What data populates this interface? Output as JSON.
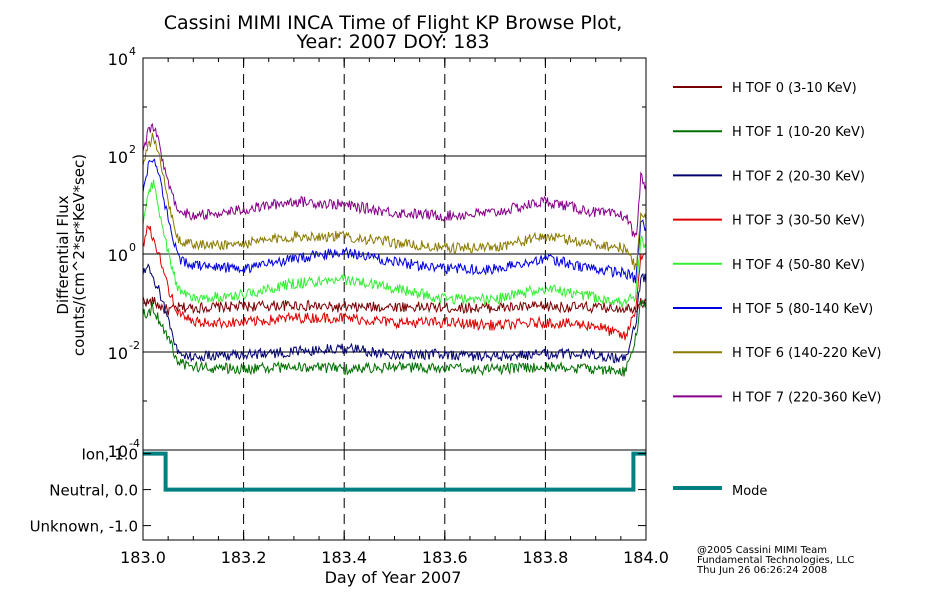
{
  "title_line1": "Cassini MIMI INCA Time of Flight KP Browse Plot,",
  "title_line2": "Year: 2007 DOY: 183",
  "copyright": [
    "@2005 Cassini MIMI Team",
    "Fundamental Technologies, LLC",
    "Thu Jun 26 06:26:24 2008"
  ],
  "chart_data": [
    {
      "type": "line",
      "yscale": "log",
      "ylabel_line1": "Differential Flux",
      "ylabel_line2": "counts/(cm^2*sr*KeV*sec)",
      "xlabel": "Day of Year 2007",
      "xlim": [
        183.0,
        184.0
      ],
      "ylim": [
        0.0001,
        10000
      ],
      "y_ticks": [
        {
          "value": 0.0001,
          "base": "10",
          "exp": "-4"
        },
        {
          "value": 0.01,
          "base": "10",
          "exp": "-2"
        },
        {
          "value": 1,
          "base": "10",
          "exp": "0"
        },
        {
          "value": 100,
          "base": "10",
          "exp": "2"
        },
        {
          "value": 10000,
          "base": "10",
          "exp": "4"
        }
      ],
      "x_ticks": [
        "183.0",
        "183.2",
        "183.4",
        "183.6",
        "183.8",
        "184.0"
      ],
      "x_tick_values": [
        183.0,
        183.2,
        183.4,
        183.6,
        183.8,
        184.0
      ],
      "grid": {
        "vertical_dashed": true,
        "horizontal_solid_at": [
          0.01,
          1,
          100
        ]
      },
      "legend_position": "right",
      "series": [
        {
          "name": "H TOF 0 (3-10 KeV)",
          "color": "#7a0000",
          "x": [
            183.0,
            183.01,
            183.02,
            183.03,
            183.05,
            183.07,
            183.1,
            183.2,
            183.3,
            183.4,
            183.5,
            183.6,
            183.7,
            183.8,
            183.9,
            183.96,
            183.98,
            183.99,
            184.0
          ],
          "y": [
            0.12,
            0.1,
            0.11,
            0.09,
            0.07,
            0.08,
            0.08,
            0.085,
            0.09,
            0.08,
            0.085,
            0.08,
            0.08,
            0.085,
            0.08,
            0.08,
            0.08,
            0.11,
            0.09
          ]
        },
        {
          "name": "H TOF 1 (10-20 KeV)",
          "color": "#007000",
          "x": [
            183.0,
            183.01,
            183.02,
            183.03,
            183.05,
            183.07,
            183.1,
            183.2,
            183.3,
            183.4,
            183.5,
            183.6,
            183.7,
            183.8,
            183.9,
            183.96,
            183.98,
            183.99,
            184.0
          ],
          "y": [
            0.07,
            0.06,
            0.08,
            0.05,
            0.02,
            0.006,
            0.005,
            0.0045,
            0.005,
            0.0045,
            0.005,
            0.0045,
            0.0045,
            0.005,
            0.0045,
            0.004,
            0.02,
            0.12,
            0.1
          ]
        },
        {
          "name": "H TOF 2 (20-30 KeV)",
          "color": "#000070",
          "x": [
            183.0,
            183.01,
            183.02,
            183.03,
            183.05,
            183.07,
            183.1,
            183.2,
            183.3,
            183.4,
            183.5,
            183.6,
            183.7,
            183.8,
            183.9,
            183.96,
            183.98,
            183.99,
            184.0
          ],
          "y": [
            0.4,
            0.5,
            0.3,
            0.2,
            0.05,
            0.009,
            0.008,
            0.009,
            0.01,
            0.012,
            0.009,
            0.009,
            0.008,
            0.009,
            0.009,
            0.007,
            0.04,
            0.4,
            0.3
          ]
        },
        {
          "name": "H TOF 3 (30-50 KeV)",
          "color": "#dd0000",
          "x": [
            183.0,
            183.01,
            183.02,
            183.03,
            183.05,
            183.07,
            183.1,
            183.2,
            183.3,
            183.4,
            183.5,
            183.6,
            183.7,
            183.8,
            183.9,
            183.96,
            183.98,
            183.99,
            184.0
          ],
          "y": [
            1.5,
            4,
            2,
            1.2,
            0.2,
            0.06,
            0.04,
            0.04,
            0.05,
            0.05,
            0.04,
            0.04,
            0.035,
            0.04,
            0.035,
            0.02,
            0.08,
            1.0,
            0.8
          ]
        },
        {
          "name": "H TOF 4 (50-80 KeV)",
          "color": "#33ee33",
          "x": [
            183.0,
            183.01,
            183.02,
            183.03,
            183.05,
            183.07,
            183.1,
            183.2,
            183.3,
            183.4,
            183.5,
            183.6,
            183.7,
            183.8,
            183.9,
            183.96,
            183.98,
            183.99,
            184.0
          ],
          "y": [
            5,
            15,
            30,
            10,
            1.0,
            0.2,
            0.12,
            0.15,
            0.25,
            0.3,
            0.2,
            0.12,
            0.12,
            0.2,
            0.13,
            0.1,
            0.15,
            2,
            1.5
          ]
        },
        {
          "name": "H TOF 5 (80-140 KeV)",
          "color": "#0000dd",
          "x": [
            183.0,
            183.01,
            183.02,
            183.03,
            183.05,
            183.07,
            183.1,
            183.2,
            183.3,
            183.4,
            183.5,
            183.6,
            183.7,
            183.8,
            183.9,
            183.96,
            183.98,
            183.99,
            184.0
          ],
          "y": [
            20,
            60,
            100,
            50,
            5,
            0.8,
            0.6,
            0.5,
            0.8,
            1.1,
            0.7,
            0.5,
            0.5,
            0.8,
            0.5,
            0.4,
            0.3,
            5,
            3
          ]
        },
        {
          "name": "H TOF 6 (140-220 KeV)",
          "color": "#8a7a00",
          "x": [
            183.0,
            183.01,
            183.02,
            183.03,
            183.05,
            183.07,
            183.1,
            183.2,
            183.3,
            183.4,
            183.5,
            183.6,
            183.7,
            183.8,
            183.9,
            183.96,
            183.98,
            183.99,
            184.0
          ],
          "y": [
            60,
            150,
            250,
            120,
            12,
            2,
            1.5,
            1.6,
            2.3,
            2.3,
            1.7,
            1.3,
            1.4,
            2.3,
            1.6,
            1.3,
            0.5,
            8,
            5
          ]
        },
        {
          "name": "H TOF 7 (220-360 KeV)",
          "color": "#880088",
          "x": [
            183.0,
            183.01,
            183.02,
            183.03,
            183.05,
            183.07,
            183.1,
            183.2,
            183.3,
            183.4,
            183.5,
            183.6,
            183.7,
            183.8,
            183.9,
            183.96,
            183.98,
            183.99,
            184.0
          ],
          "y": [
            100,
            300,
            400,
            200,
            30,
            8,
            6,
            8,
            12,
            10,
            7,
            6,
            7,
            12,
            7,
            6,
            2,
            40,
            20
          ]
        }
      ]
    },
    {
      "type": "line",
      "xlim": [
        183.0,
        184.0
      ],
      "ylim": [
        -1.4,
        1.1
      ],
      "y_ticks": [
        {
          "value": 1.0,
          "label": "Ion, 1.0"
        },
        {
          "value": 0.0,
          "label": "Neutral, 0.0"
        },
        {
          "value": -1.0,
          "label": "Unknown, -1.0"
        }
      ],
      "series": [
        {
          "name": "Mode",
          "color": "#008080",
          "x": [
            183.0,
            183.045,
            183.045,
            183.975,
            183.975,
            184.0
          ],
          "y": [
            1,
            1,
            0,
            0,
            1,
            1
          ]
        }
      ]
    }
  ]
}
